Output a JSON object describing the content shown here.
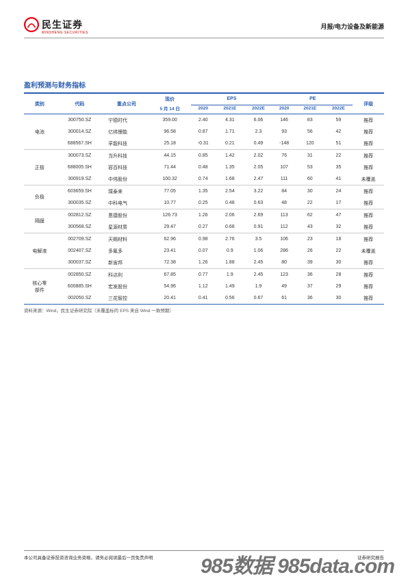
{
  "header": {
    "logo_cn": "民生证券",
    "logo_en": "MINSHENG SECURITIES",
    "logo_colors": {
      "red": "#e60012",
      "grey": "#444"
    },
    "right_text": "月报/电力设备及新能源"
  },
  "section_title": "盈利预测与财务指标",
  "table": {
    "header": {
      "category": "类别",
      "code": "代码",
      "company": "重点公司",
      "price": "现价",
      "date": "5 月 14 日",
      "eps": "EPS",
      "pe": "PE",
      "rating": "评级",
      "y2020": "2020",
      "y2021e": "2021E",
      "y2022e": "2022E"
    },
    "groups": [
      {
        "category": "电池",
        "rows": [
          {
            "code": "300750.SZ",
            "company": "宁德时代",
            "price": "359.00",
            "eps20": "2.40",
            "eps21": "4.31",
            "eps22": "6.06",
            "pe20": "146",
            "pe21": "83",
            "pe22": "59",
            "rating": "推荐"
          },
          {
            "code": "300014.SZ",
            "company": "亿纬锂能",
            "price": "96.58",
            "eps20": "0.87",
            "eps21": "1.71",
            "eps22": "2.3",
            "pe20": "93",
            "pe21": "56",
            "pe22": "42",
            "rating": "推荐"
          },
          {
            "code": "688567.SH",
            "company": "孚能科技",
            "price": "25.18",
            "eps20": "-0.31",
            "eps21": "0.21",
            "eps22": "0.49",
            "pe20": "-148",
            "pe21": "120",
            "pe22": "51",
            "rating": "推荐"
          }
        ]
      },
      {
        "category": "正极",
        "rows": [
          {
            "code": "300073.SZ",
            "company": "当升科技",
            "price": "44.15",
            "eps20": "0.85",
            "eps21": "1.42",
            "eps22": "2.02",
            "pe20": "76",
            "pe21": "31",
            "pe22": "22",
            "rating": "推荐"
          },
          {
            "code": "688005.SH",
            "company": "容百科技",
            "price": "71.44",
            "eps20": "0.48",
            "eps21": "1.35",
            "eps22": "2.05",
            "pe20": "107",
            "pe21": "53",
            "pe22": "35",
            "rating": "推荐"
          },
          {
            "code": "300919.SZ",
            "company": "中伟股份",
            "price": "100.32",
            "eps20": "0.74",
            "eps21": "1.68",
            "eps22": "2.47",
            "pe20": "111",
            "pe21": "60",
            "pe22": "41",
            "rating": "未覆盖"
          }
        ]
      },
      {
        "category": "负极",
        "rows": [
          {
            "code": "603659.SH",
            "company": "璞泰来",
            "price": "77.05",
            "eps20": "1.35",
            "eps21": "2.54",
            "eps22": "3.22",
            "pe20": "84",
            "pe21": "30",
            "pe22": "24",
            "rating": "推荐"
          },
          {
            "code": "300035.SZ",
            "company": "中科电气",
            "price": "10.77",
            "eps20": "0.25",
            "eps21": "0.48",
            "eps22": "0.63",
            "pe20": "48",
            "pe21": "22",
            "pe22": "17",
            "rating": "推荐"
          }
        ]
      },
      {
        "category": "隔膜",
        "rows": [
          {
            "code": "002812.SZ",
            "company": "恩捷股份",
            "price": "126.73",
            "eps20": "1.26",
            "eps21": "2.06",
            "eps22": "2.69",
            "pe20": "113",
            "pe21": "62",
            "pe22": "47",
            "rating": "推荐"
          },
          {
            "code": "300568.SZ",
            "company": "星源材质",
            "price": "29.47",
            "eps20": "0.27",
            "eps21": "0.68",
            "eps22": "0.91",
            "pe20": "112",
            "pe21": "43",
            "pe22": "32",
            "rating": "推荐"
          }
        ]
      },
      {
        "category": "电解液",
        "rows": [
          {
            "code": "002709.SZ",
            "company": "天赐材料",
            "price": "62.96",
            "eps20": "0.98",
            "eps21": "2.76",
            "eps22": "3.5",
            "pe20": "106",
            "pe21": "23",
            "pe22": "18",
            "rating": "推荐"
          },
          {
            "code": "002407.SZ",
            "company": "多氟多",
            "price": "23.41",
            "eps20": "0.07",
            "eps21": "0.9",
            "eps22": "1.06",
            "pe20": "286",
            "pe21": "26",
            "pe22": "22",
            "rating": "未覆盖"
          },
          {
            "code": "300037.SZ",
            "company": "新宙邦",
            "price": "72.38",
            "eps20": "1.26",
            "eps21": "1.88",
            "eps22": "2.45",
            "pe20": "80",
            "pe21": "39",
            "pe22": "30",
            "rating": "推荐"
          }
        ]
      },
      {
        "category": "核心零\n部件",
        "rows": [
          {
            "code": "002850.SZ",
            "company": "科达利",
            "price": "67.85",
            "eps20": "0.77",
            "eps21": "1.9",
            "eps22": "2.45",
            "pe20": "123",
            "pe21": "36",
            "pe22": "28",
            "rating": "推荐"
          },
          {
            "code": "600885.SH",
            "company": "宏发股份",
            "price": "54.96",
            "eps20": "1.12",
            "eps21": "1.49",
            "eps22": "1.9",
            "pe20": "49",
            "pe21": "37",
            "pe22": "29",
            "rating": "推荐"
          },
          {
            "code": "002050.SZ",
            "company": "三花智控",
            "price": "20.41",
            "eps20": "0.41",
            "eps21": "0.56",
            "eps22": "0.67",
            "pe20": "61",
            "pe21": "36",
            "pe22": "30",
            "rating": "推荐"
          }
        ]
      }
    ]
  },
  "source_note": "资料来源：Wind，民生证券研究院（未覆盖标的 EPS 来自 Wind 一致预期）",
  "footer": {
    "left": "本公司具备证券投资咨询业务资格，请务必阅读最后一页免责声明",
    "right": "证券研究报告",
    "watermark": "985数据 985data.com"
  },
  "colors": {
    "heading": "#2a5db0",
    "rule": "#2a5db0",
    "text": "#333333"
  }
}
